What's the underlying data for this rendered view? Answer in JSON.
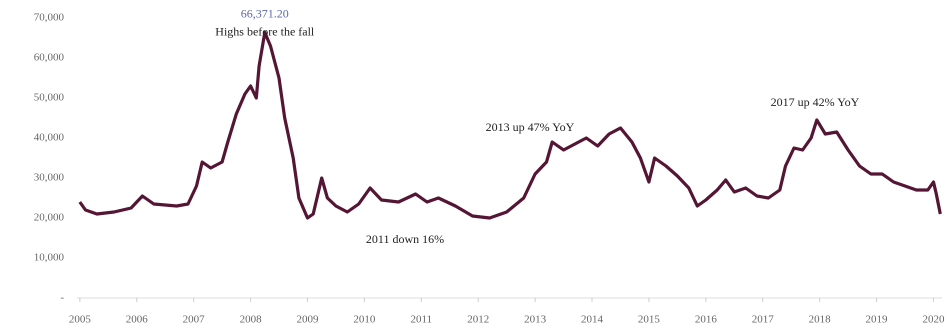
{
  "chart_data": {
    "type": "line",
    "x": [
      2005.0,
      2005.1,
      2005.3,
      2005.6,
      2005.9,
      2006.1,
      2006.3,
      2006.7,
      2006.9,
      2007.05,
      2007.15,
      2007.3,
      2007.5,
      2007.6,
      2007.75,
      2007.9,
      2008.0,
      2008.1,
      2008.15,
      2008.25,
      2008.35,
      2008.5,
      2008.6,
      2008.75,
      2008.85,
      2009.0,
      2009.1,
      2009.25,
      2009.35,
      2009.5,
      2009.7,
      2009.9,
      2010.1,
      2010.3,
      2010.6,
      2010.9,
      2011.1,
      2011.3,
      2011.6,
      2011.9,
      2012.2,
      2012.5,
      2012.8,
      2013.0,
      2013.2,
      2013.3,
      2013.5,
      2013.7,
      2013.9,
      2014.1,
      2014.3,
      2014.5,
      2014.7,
      2014.85,
      2015.0,
      2015.1,
      2015.3,
      2015.5,
      2015.7,
      2015.85,
      2016.0,
      2016.2,
      2016.35,
      2016.5,
      2016.7,
      2016.9,
      2017.1,
      2017.3,
      2017.4,
      2017.55,
      2017.7,
      2017.85,
      2017.95,
      2018.1,
      2018.3,
      2018.5,
      2018.7,
      2018.9,
      2019.1,
      2019.3,
      2019.5,
      2019.7,
      2019.9,
      2020.0,
      2020.05,
      2020.12
    ],
    "series": [
      {
        "color": "#541634",
        "values": [
          24000,
          22000,
          21000,
          21500,
          22500,
          25500,
          23500,
          23000,
          23500,
          28000,
          34000,
          32500,
          34000,
          39000,
          46000,
          51000,
          53000,
          50000,
          58000,
          66371.2,
          63000,
          55000,
          45000,
          35000,
          25000,
          20000,
          21000,
          30000,
          25000,
          23000,
          21500,
          23500,
          27500,
          24500,
          24000,
          26000,
          24000,
          25000,
          23000,
          20500,
          20000,
          21500,
          25000,
          31000,
          34000,
          39000,
          37000,
          38500,
          40000,
          38000,
          41000,
          42500,
          39000,
          35000,
          29000,
          35000,
          33000,
          30500,
          27500,
          23000,
          24500,
          27000,
          29500,
          26500,
          27500,
          25500,
          25000,
          27000,
          33000,
          37500,
          37000,
          40000,
          44500,
          41000,
          41500,
          37000,
          33000,
          31000,
          31000,
          29000,
          28000,
          27000,
          27000,
          29000,
          26000,
          21000
        ]
      }
    ],
    "xlim": [
      2004.95,
      2020.15
    ],
    "xticks": [
      2005,
      2006,
      2007,
      2008,
      2009,
      2010,
      2011,
      2012,
      2013,
      2014,
      2015,
      2016,
      2017,
      2018,
      2019,
      2020
    ],
    "ylim": [
      0,
      70000
    ],
    "yticks": [
      {
        "value": 0,
        "label": "-"
      },
      {
        "value": 10000,
        "label": "10,000"
      },
      {
        "value": 20000,
        "label": "20,000"
      },
      {
        "value": 30000,
        "label": "30,000"
      },
      {
        "value": 40000,
        "label": "40,000"
      },
      {
        "value": 50000,
        "label": "50,000"
      },
      {
        "value": 60000,
        "label": "60,000"
      },
      {
        "value": 70000,
        "label": "70,000"
      }
    ],
    "peak": {
      "x": 2008.25,
      "value": 66371.2,
      "label": "66,371.20",
      "note": "Highs before the fall",
      "color": "#5a6aa8"
    },
    "annotations": [
      "2013 up 47% YoY",
      "2011 down 16%",
      "2017 up 42% YoY"
    ]
  }
}
